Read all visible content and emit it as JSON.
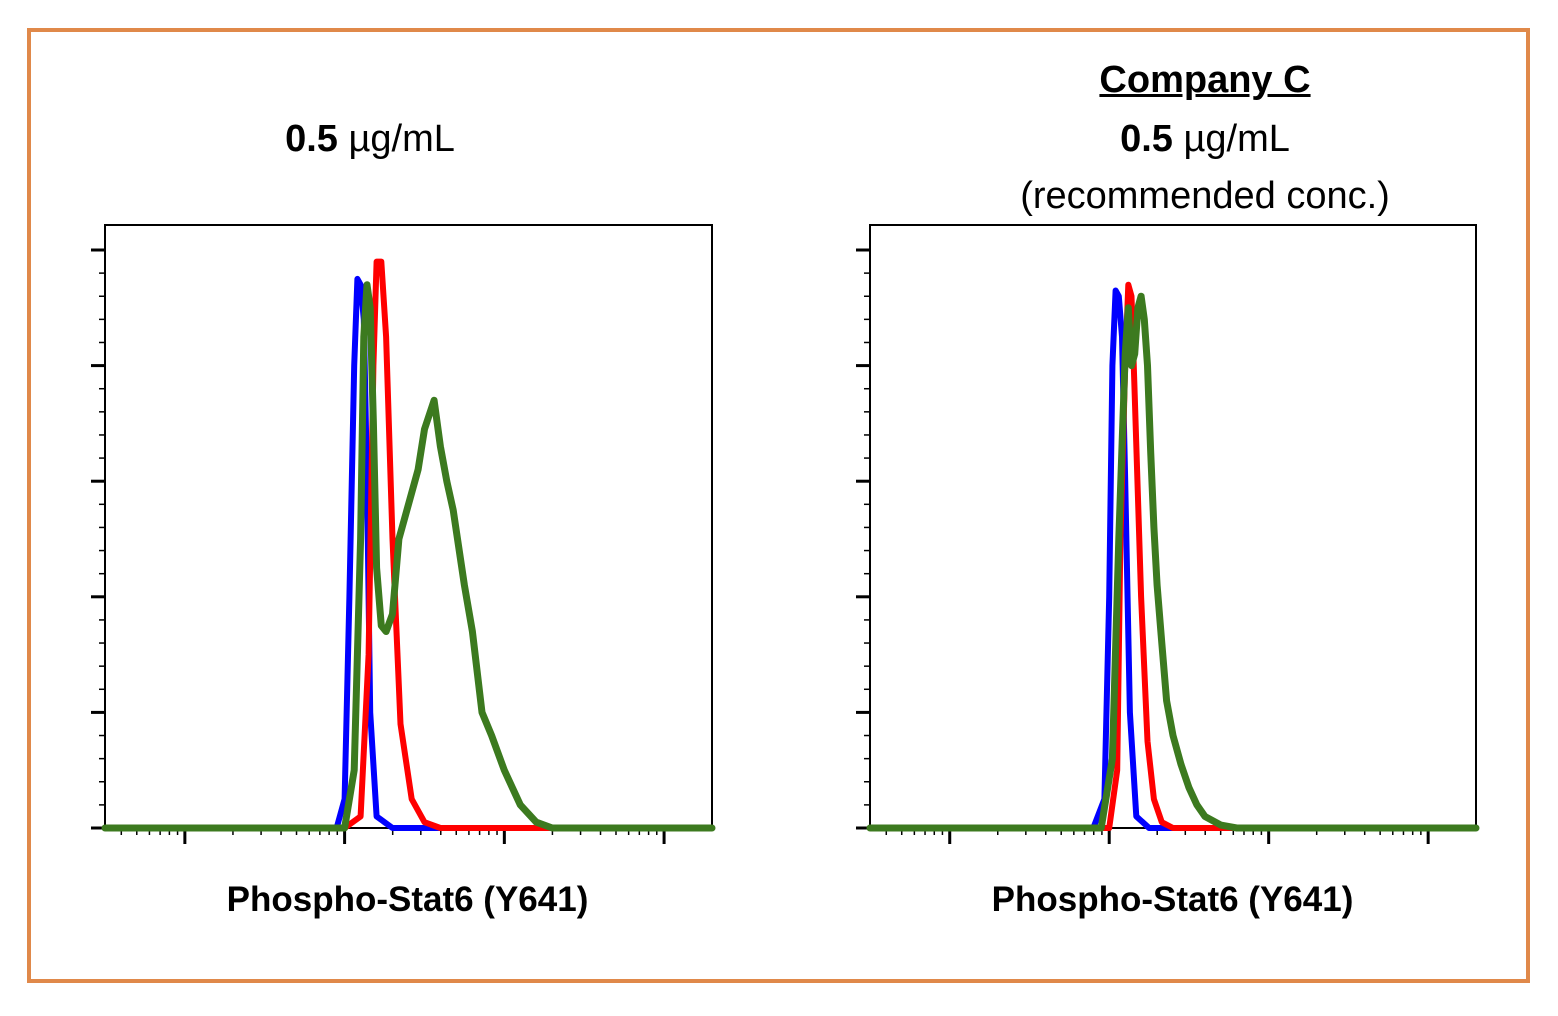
{
  "chart_data": [
    {
      "type": "line",
      "header": "",
      "title_value": "0.5",
      "title_unit": "µg/mL",
      "note": "",
      "xlabel": "Phospho-Stat6 (Y641)",
      "ylabel": "",
      "xscale": "log",
      "xlim": [
        -0.5,
        3.3
      ],
      "ylim": [
        0,
        100
      ],
      "grid": false,
      "legend": "none",
      "series": [
        {
          "color": "#0000ff",
          "x": [
            -0.5,
            0.95,
            1.0,
            1.03,
            1.06,
            1.08,
            1.1,
            1.12,
            1.14,
            1.16,
            1.2,
            1.3,
            3.3
          ],
          "y": [
            0,
            0,
            5,
            40,
            80,
            95,
            94,
            88,
            60,
            20,
            2,
            0,
            0
          ]
        },
        {
          "color": "#ff0000",
          "x": [
            -0.5,
            1.0,
            1.1,
            1.15,
            1.18,
            1.2,
            1.23,
            1.26,
            1.3,
            1.35,
            1.42,
            1.5,
            1.6,
            3.3
          ],
          "y": [
            0,
            0,
            2,
            30,
            80,
            98,
            98,
            85,
            50,
            18,
            5,
            1,
            0,
            0
          ]
        },
        {
          "color": "#3c7a1f",
          "x": [
            -0.5,
            1.0,
            1.06,
            1.1,
            1.12,
            1.14,
            1.16,
            1.18,
            1.2,
            1.23,
            1.26,
            1.3,
            1.34,
            1.4,
            1.46,
            1.5,
            1.56,
            1.6,
            1.64,
            1.68,
            1.75,
            1.8,
            1.86,
            1.92,
            2.0,
            2.1,
            2.2,
            2.3,
            3.3
          ],
          "y": [
            0,
            0,
            10,
            50,
            85,
            94,
            90,
            70,
            45,
            35,
            34,
            37,
            50,
            56,
            62,
            69,
            74,
            66,
            60,
            55,
            42,
            34,
            20,
            16,
            10,
            4,
            1,
            0,
            0
          ]
        }
      ]
    },
    {
      "type": "line",
      "header": "Company C",
      "title_value": "0.5",
      "title_unit": "µg/mL",
      "note": "(recommended conc.)",
      "xlabel": "Phospho-Stat6 (Y641)",
      "ylabel": "",
      "xscale": "log",
      "xlim": [
        -0.5,
        3.3
      ],
      "ylim": [
        0,
        100
      ],
      "grid": false,
      "legend": "none",
      "series": [
        {
          "color": "#0000ff",
          "x": [
            -0.5,
            0.9,
            0.97,
            1.0,
            1.02,
            1.04,
            1.06,
            1.08,
            1.1,
            1.13,
            1.17,
            1.25,
            3.3
          ],
          "y": [
            0,
            0,
            5,
            40,
            80,
            93,
            92,
            85,
            60,
            20,
            2,
            0,
            0
          ]
        },
        {
          "color": "#ff0000",
          "x": [
            -0.5,
            1.0,
            1.05,
            1.07,
            1.1,
            1.12,
            1.14,
            1.16,
            1.2,
            1.24,
            1.28,
            1.33,
            1.4,
            3.3
          ],
          "y": [
            0,
            0,
            10,
            50,
            80,
            94,
            92,
            75,
            40,
            15,
            5,
            1,
            0,
            0
          ]
        },
        {
          "color": "#3c7a1f",
          "x": [
            -0.5,
            0.95,
            1.02,
            1.06,
            1.1,
            1.12,
            1.14,
            1.16,
            1.18,
            1.2,
            1.22,
            1.24,
            1.26,
            1.28,
            1.3,
            1.33,
            1.36,
            1.4,
            1.45,
            1.5,
            1.55,
            1.6,
            1.7,
            1.8,
            3.3
          ],
          "y": [
            0,
            0,
            12,
            50,
            82,
            90,
            80,
            82,
            90,
            92,
            88,
            80,
            65,
            52,
            42,
            32,
            22,
            16,
            11,
            7,
            4,
            2,
            0.5,
            0,
            0
          ]
        }
      ]
    }
  ]
}
